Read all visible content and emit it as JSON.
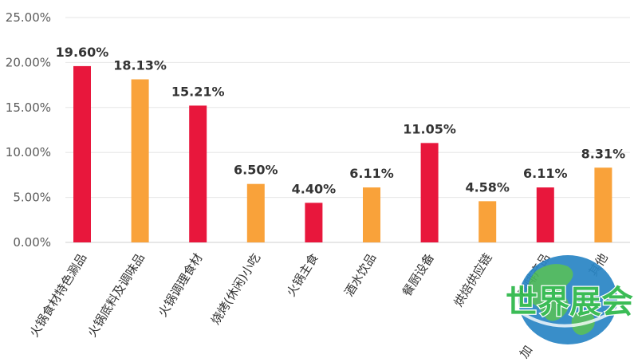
{
  "chart_data": {
    "type": "bar",
    "categories": [
      "火锅食材特色涮品",
      "火锅底料及调味品",
      "火锅调理食材",
      "烧烤(休闲)小吃",
      "火锅主食",
      "酒水饮品",
      "餐厨设备",
      "烘焙供应链",
      "咖啡产品",
      "其他"
    ],
    "values": [
      19.6,
      18.13,
      15.21,
      6.5,
      4.4,
      6.11,
      11.05,
      4.58,
      6.11,
      8.31
    ],
    "data_labels": [
      "19.60%",
      "18.13%",
      "15.21%",
      "6.50%",
      "4.40%",
      "6.11%",
      "11.05%",
      "4.58%",
      "6.11%",
      "8.31%"
    ],
    "bar_colors": [
      "#e8173c",
      "#f9a23a",
      "#e8173c",
      "#f9a23a",
      "#e8173c",
      "#f9a23a",
      "#e8173c",
      "#f9a23a",
      "#e8173c",
      "#f9a23a"
    ],
    "y_ticks": [
      "0.00%",
      "5.00%",
      "10.00%",
      "15.00%",
      "20.00%",
      "25.00%"
    ],
    "ylim": [
      0,
      25
    ],
    "grid": true,
    "legend": "none"
  },
  "watermark": {
    "text": "世界展会",
    "stray_text": "加"
  }
}
